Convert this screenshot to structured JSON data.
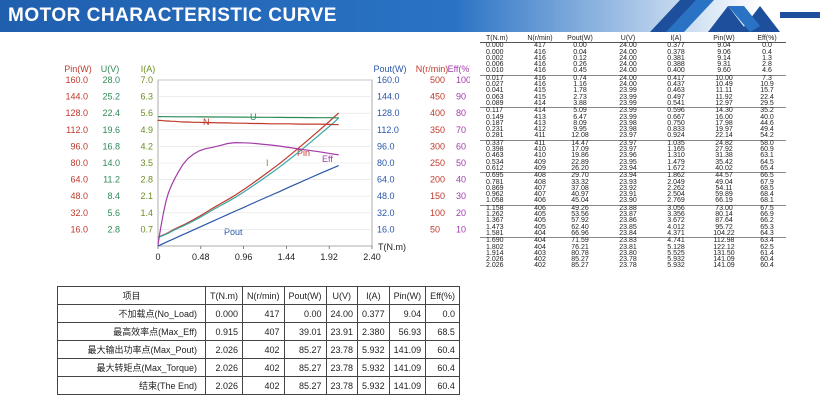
{
  "header": {
    "title": "MOTOR CHARACTERISTIC CURVE"
  },
  "colors": {
    "pin": "#c0392b",
    "u": "#2e8b57",
    "i": "#6b8e23",
    "n": "#c0392b",
    "pout": "#2a56a8",
    "eff": "#a23ba8",
    "tn": "#222222"
  },
  "chart_data": {
    "type": "line",
    "x_label": "T(N.m)",
    "x_ticks": [
      "0",
      "0.48",
      "0.96",
      "1.44",
      "1.92",
      "2.40"
    ],
    "xlim": [
      0,
      2.4
    ],
    "left_axes": [
      {
        "label": "Pin(W)",
        "color": "#c0392b",
        "ticks": [
          "16.0",
          "32.0",
          "48.0",
          "64.0",
          "80.0",
          "96.0",
          "112.0",
          "128.0",
          "144.0",
          "160.0"
        ]
      },
      {
        "label": "U(V)",
        "color": "#2e8b57",
        "ticks": [
          "2.8",
          "5.6",
          "8.4",
          "11.2",
          "14.0",
          "16.8",
          "19.6",
          "22.4",
          "25.2",
          "28.0"
        ]
      },
      {
        "label": "I(A)",
        "color": "#6b8e23",
        "ticks": [
          "0.7",
          "1.4",
          "2.1",
          "2.8",
          "3.5",
          "4.2",
          "4.9",
          "5.6",
          "6.3",
          "7.0"
        ]
      }
    ],
    "right_axes": [
      {
        "label": "Pout(W)",
        "color": "#2a56a8",
        "ticks": [
          "16.0",
          "32.0",
          "48.0",
          "64.0",
          "80.0",
          "96.0",
          "112.0",
          "128.0",
          "144.0",
          "160.0"
        ]
      },
      {
        "label": "N(r/min)",
        "color": "#c0392b",
        "ticks": [
          "50",
          "100",
          "150",
          "200",
          "250",
          "300",
          "350",
          "400",
          "450",
          "500"
        ]
      },
      {
        "label": "Eff(%)",
        "color": "#a23ba8",
        "ticks": [
          "10",
          "20",
          "30",
          "40",
          "50",
          "60",
          "70",
          "80",
          "90",
          "100"
        ]
      }
    ],
    "series_labels": [
      "N",
      "U",
      "I",
      "Pin",
      "Eff",
      "Pout"
    ]
  },
  "summary": {
    "headers": [
      "项目",
      "T(N.m)",
      "N(r/min)",
      "Pout(W)",
      "U(V)",
      "I(A)",
      "Pin(W)",
      "Eff(%)"
    ],
    "rows": [
      [
        "不加载点(No_Load)",
        "0.000",
        "417",
        "0.00",
        "24.00",
        "0.377",
        "9.04",
        "0.0"
      ],
      [
        "最高效率点(Max_Eff)",
        "0.915",
        "407",
        "39.01",
        "23.91",
        "2.380",
        "56.93",
        "68.5"
      ],
      [
        "最大输出功率点(Max_Pout)",
        "2.026",
        "402",
        "85.27",
        "23.78",
        "5.932",
        "141.09",
        "60.4"
      ],
      [
        "最大转矩点(Max_Torque)",
        "2.026",
        "402",
        "85.27",
        "23.78",
        "5.932",
        "141.09",
        "60.4"
      ],
      [
        "结束(The End)",
        "2.026",
        "402",
        "85.27",
        "23.78",
        "5.932",
        "141.09",
        "60.4"
      ]
    ]
  },
  "data_table": {
    "headers": [
      "T(N.m)",
      "N(r/min)",
      "Pout(W)",
      "U(V)",
      "I(A)",
      "Pin(W)",
      "Eff(%)"
    ],
    "rows": [
      [
        "0.000",
        "417",
        "0.00",
        "24.00",
        "0.377",
        "9.04",
        "0.0"
      ],
      [
        "0.000",
        "416",
        "0.04",
        "24.00",
        "0.378",
        "9.06",
        "0.4"
      ],
      [
        "0.002",
        "416",
        "0.12",
        "24.00",
        "0.381",
        "9.14",
        "1.3"
      ],
      [
        "0.006",
        "416",
        "0.26",
        "24.00",
        "0.388",
        "9.31",
        "2.8"
      ],
      [
        "0.010",
        "416",
        "0.45",
        "24.00",
        "0.400",
        "9.60",
        "4.6"
      ],
      [
        "0.017",
        "416",
        "0.74",
        "24.00",
        "0.417",
        "10.00",
        "7.3"
      ],
      [
        "0.027",
        "416",
        "1.16",
        "24.00",
        "0.437",
        "10.49",
        "10.9"
      ],
      [
        "0.041",
        "415",
        "1.78",
        "23.99",
        "0.463",
        "11.11",
        "15.7"
      ],
      [
        "0.063",
        "415",
        "2.73",
        "23.99",
        "0.497",
        "11.92",
        "22.4"
      ],
      [
        "0.089",
        "414",
        "3.88",
        "23.99",
        "0.541",
        "12.97",
        "29.5"
      ],
      [
        "0.117",
        "414",
        "5.09",
        "23.99",
        "0.596",
        "14.30",
        "35.2"
      ],
      [
        "0.149",
        "413",
        "6.47",
        "23.99",
        "0.667",
        "16.00",
        "40.0"
      ],
      [
        "0.187",
        "413",
        "8.09",
        "23.98",
        "0.750",
        "17.98",
        "44.6"
      ],
      [
        "0.231",
        "412",
        "9.95",
        "23.98",
        "0.833",
        "19.97",
        "49.4"
      ],
      [
        "0.281",
        "411",
        "12.08",
        "23.97",
        "0.924",
        "22.14",
        "54.2"
      ],
      [
        "0.337",
        "411",
        "14.47",
        "23.97",
        "1.035",
        "24.82",
        "58.0"
      ],
      [
        "0.398",
        "410",
        "17.09",
        "23.97",
        "1.165",
        "27.92",
        "60.9"
      ],
      [
        "0.463",
        "410",
        "19.86",
        "23.96",
        "1.310",
        "31.38",
        "63.1"
      ],
      [
        "0.534",
        "409",
        "22.89",
        "23.95",
        "1.479",
        "35.42",
        "64.5"
      ],
      [
        "0.612",
        "409",
        "26.20",
        "23.94",
        "1.672",
        "40.02",
        "65.4"
      ],
      [
        "0.695",
        "408",
        "29.70",
        "23.94",
        "1.862",
        "44.57",
        "66.5"
      ],
      [
        "0.781",
        "408",
        "33.32",
        "23.93",
        "2.049",
        "49.04",
        "67.9"
      ],
      [
        "0.869",
        "407",
        "37.08",
        "23.92",
        "2.262",
        "54.11",
        "68.5"
      ],
      [
        "0.962",
        "407",
        "40.97",
        "23.91",
        "2.504",
        "59.89",
        "68.4"
      ],
      [
        "1.058",
        "406",
        "45.04",
        "23.90",
        "2.769",
        "66.19",
        "68.1"
      ],
      [
        "1.158",
        "406",
        "49.26",
        "23.88",
        "3.056",
        "73.00",
        "67.5"
      ],
      [
        "1.262",
        "405",
        "53.56",
        "23.87",
        "3.356",
        "80.14",
        "66.9"
      ],
      [
        "1.367",
        "405",
        "57.92",
        "23.86",
        "3.672",
        "87.64",
        "66.2"
      ],
      [
        "1.473",
        "405",
        "62.40",
        "23.85",
        "4.012",
        "95.72",
        "65.3"
      ],
      [
        "1.581",
        "404",
        "66.96",
        "23.84",
        "4.371",
        "104.22",
        "64.3"
      ],
      [
        "1.690",
        "404",
        "71.59",
        "23.83",
        "4.741",
        "112.98",
        "63.4"
      ],
      [
        "1.802",
        "404",
        "76.21",
        "23.81",
        "5.128",
        "122.12",
        "62.5"
      ],
      [
        "1.914",
        "403",
        "80.78",
        "23.80",
        "5.525",
        "131.50",
        "61.4"
      ],
      [
        "2.026",
        "402",
        "85.27",
        "23.78",
        "5.932",
        "141.09",
        "60.4"
      ],
      [
        "2.026",
        "402",
        "85.27",
        "23.78",
        "5.932",
        "141.09",
        "60.4"
      ]
    ]
  }
}
